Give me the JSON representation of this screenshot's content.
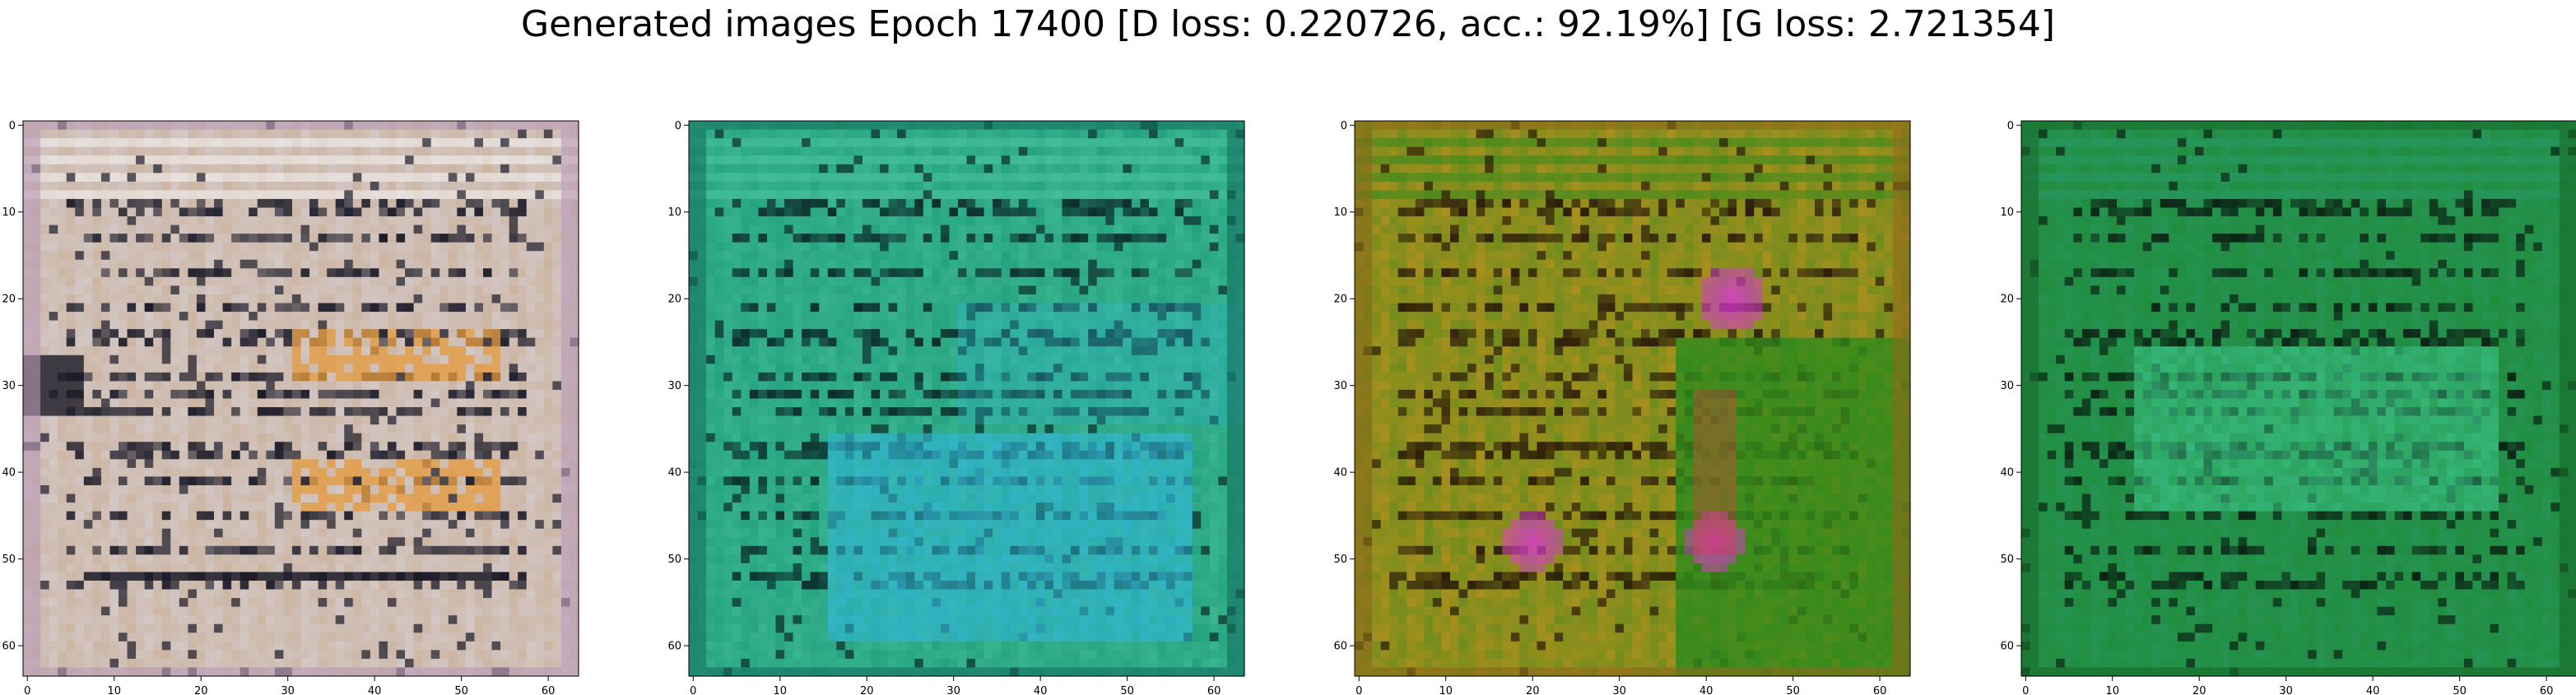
{
  "figure": {
    "suptitle": "Generated images Epoch 17400 [D loss: 0.220726, acc.: 92.19%] [G loss: 2.721354]"
  },
  "chart_data": [
    {
      "type": "heatmap",
      "title": "",
      "xlabel": "",
      "ylabel": "",
      "xlim": [
        0,
        63
      ],
      "ylim": [
        63,
        0
      ],
      "xticks": [
        0,
        10,
        20,
        30,
        40,
        50,
        60
      ],
      "yticks": [
        0,
        10,
        20,
        30,
        40,
        50,
        60
      ],
      "grid": false,
      "image": {
        "shape": [
          64,
          64,
          3
        ],
        "palette": {
          "base": "#d6d0d6",
          "dark": "#1a1a28",
          "accent": "#e69a3c",
          "accent2": "#c4a07a",
          "edge": "#b89ab6"
        },
        "features": {
          "horizontal_lines": true,
          "dark_blob": "left edge near row 28-33",
          "orange_patches": "right-center rows 24-45"
        }
      }
    },
    {
      "type": "heatmap",
      "title": "",
      "xlabel": "",
      "ylabel": "",
      "xlim": [
        0,
        63
      ],
      "ylim": [
        63,
        0
      ],
      "xticks": [
        0,
        10,
        20,
        30,
        40,
        50,
        60
      ],
      "yticks": [
        0,
        10,
        20,
        30,
        40,
        50,
        60
      ],
      "grid": false,
      "image": {
        "shape": [
          64,
          64,
          3
        ],
        "palette": {
          "base": "#1c9a78",
          "dark": "#0a2a2a",
          "accent": "#32b6d8",
          "accent2": "#4ec8a0",
          "edge": "#15705e"
        },
        "features": {
          "horizontal_lines": true,
          "cyan_region": "lower-center rows 35-60"
        }
      }
    },
    {
      "type": "heatmap",
      "title": "",
      "xlabel": "",
      "ylabel": "",
      "xlim": [
        0,
        63
      ],
      "ylim": [
        63,
        0
      ],
      "xticks": [
        0,
        10,
        20,
        30,
        40,
        50,
        60
      ],
      "yticks": [
        0,
        10,
        20,
        30,
        40,
        50,
        60
      ],
      "grid": false,
      "image": {
        "shape": [
          64,
          64,
          3
        ],
        "palette": {
          "base": "#c3901e",
          "dark": "#2a1a08",
          "accent": "#d838d0",
          "accent2": "#2e8a1c",
          "edge": "#8a6a1a"
        },
        "features": {
          "horizontal_lines": true,
          "green_region": "right side rows 22-63",
          "magenta_spots": "around (43,20), (20,48), (41,48)"
        }
      }
    },
    {
      "type": "heatmap",
      "title": "",
      "xlabel": "",
      "ylabel": "",
      "xlim": [
        0,
        63
      ],
      "ylim": [
        63,
        0
      ],
      "xticks": [
        0,
        10,
        20,
        30,
        40,
        50,
        60
      ],
      "yticks": [
        0,
        10,
        20,
        30,
        40,
        50,
        60
      ],
      "grid": false,
      "image": {
        "shape": [
          64,
          64,
          3
        ],
        "palette": {
          "base": "#1f8a34",
          "dark": "#0a2214",
          "accent": "#3ec88e",
          "accent2": "#2a9a6a",
          "edge": "#176a2a"
        },
        "features": {
          "horizontal_lines": true,
          "blue_tint": "center rows 25-45"
        }
      }
    }
  ]
}
